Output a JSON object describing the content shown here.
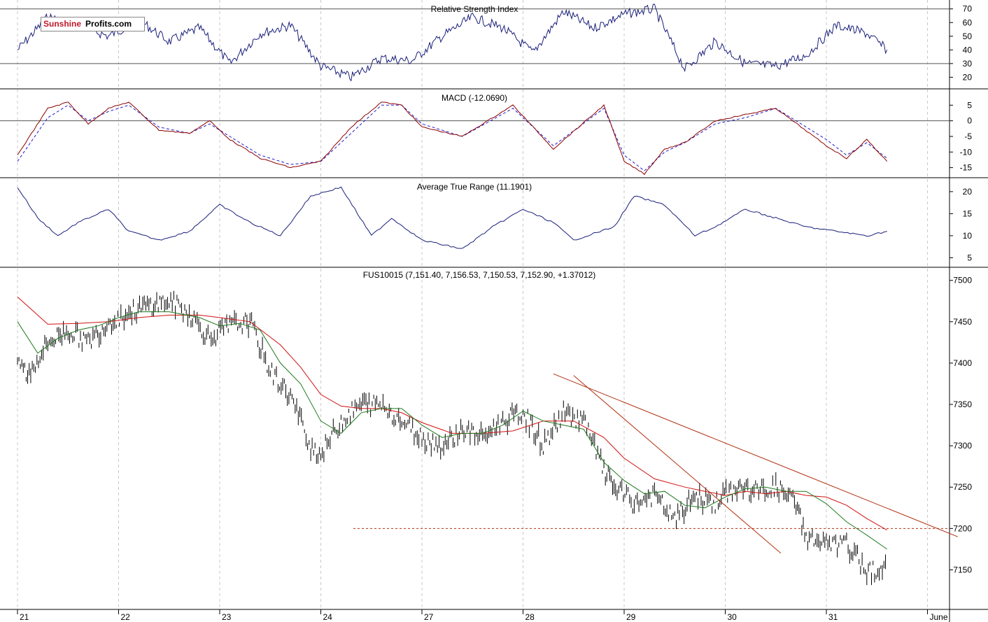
{
  "logo": {
    "part1": "Sunshine",
    "part2": "Profits.com"
  },
  "colors": {
    "price_bars": "#000000",
    "rsi": "#1a1f7a",
    "macd": "#8b0000",
    "macd_signal": "#1f1fcc",
    "atr": "#1a1f7a",
    "ma_short": "#1f7a1f",
    "ma_long": "#d01010",
    "trendline": "#b03010",
    "support": "#b03010",
    "gridline": "#c8c8c8"
  },
  "chart_data": [
    {
      "type": "line",
      "panel": "rsi",
      "title": "Relative Strength Index",
      "ylim": [
        12,
        76
      ],
      "yticks": [
        20,
        30,
        40,
        50,
        60,
        70
      ],
      "reference_lines": [
        30,
        70
      ],
      "x": [
        0,
        0.3,
        0.6,
        0.9,
        1.2,
        1.5,
        1.8,
        2.1,
        2.4,
        2.7,
        3,
        3.3,
        3.6,
        3.9,
        4.2,
        4.5,
        4.8,
        5.1,
        5.4,
        5.7,
        6,
        6.3,
        6.6,
        6.9,
        7.2,
        7.5,
        7.8,
        8.1,
        8.4,
        8.6
      ],
      "values": [
        40,
        64,
        58,
        50,
        62,
        46,
        56,
        30,
        52,
        58,
        28,
        20,
        34,
        32,
        50,
        64,
        56,
        38,
        68,
        56,
        66,
        70,
        26,
        46,
        30,
        28,
        36,
        58,
        52,
        40
      ]
    },
    {
      "type": "line",
      "panel": "macd",
      "title": "MACD (-12.0690)",
      "ylim": [
        -18,
        10
      ],
      "yticks": [
        -15,
        -10,
        -5,
        0,
        5
      ],
      "reference_lines": [
        0
      ],
      "series": [
        {
          "name": "macd",
          "x": [
            0,
            0.3,
            0.5,
            0.7,
            0.9,
            1.1,
            1.4,
            1.7,
            1.9,
            2.1,
            2.4,
            2.7,
            3,
            3.3,
            3.6,
            3.8,
            4,
            4.4,
            4.9,
            5.3,
            5.8,
            6,
            6.2,
            6.4,
            6.6,
            6.9,
            7.2,
            7.5,
            8,
            8.2,
            8.4,
            8.6
          ],
          "values": [
            -11,
            4,
            6,
            -1,
            4,
            6,
            -3,
            -4,
            0,
            -6,
            -12,
            -15,
            -13,
            -2,
            6,
            5,
            -2,
            -5,
            5,
            -9,
            5,
            -13,
            -17,
            -9,
            -7,
            0,
            2,
            4,
            -8,
            -12,
            -6,
            -13
          ]
        },
        {
          "name": "signal",
          "x": [
            0,
            0.3,
            0.5,
            0.7,
            0.9,
            1.1,
            1.4,
            1.7,
            1.9,
            2.1,
            2.4,
            2.7,
            3,
            3.3,
            3.6,
            3.8,
            4,
            4.4,
            4.9,
            5.3,
            5.8,
            6,
            6.2,
            6.4,
            6.6,
            6.9,
            7.2,
            7.5,
            8,
            8.2,
            8.4,
            8.6
          ],
          "values": [
            -13,
            1,
            5,
            0,
            3,
            5,
            -2,
            -4,
            -1,
            -5,
            -11,
            -14,
            -13,
            -4,
            5,
            5,
            -1,
            -5,
            4,
            -8,
            4,
            -11,
            -16,
            -10,
            -7,
            -1,
            1,
            4,
            -6,
            -11,
            -7,
            -12
          ]
        }
      ]
    },
    {
      "type": "line",
      "panel": "atr",
      "title": "Average True Range (11.1901)",
      "ylim": [
        3,
        23
      ],
      "yticks": [
        5,
        10,
        15,
        20
      ],
      "x": [
        0,
        0.2,
        0.4,
        0.6,
        0.9,
        1.1,
        1.4,
        1.7,
        2,
        2.3,
        2.6,
        2.9,
        3.2,
        3.5,
        3.7,
        4,
        4.4,
        4.7,
        5,
        5.3,
        5.5,
        5.9,
        6.1,
        6.4,
        6.7,
        6.9,
        7.2,
        7.5,
        7.8,
        8.1,
        8.4,
        8.6
      ],
      "values": [
        21,
        14,
        10,
        13,
        16,
        11,
        9,
        11,
        17,
        13,
        10,
        19,
        21,
        10,
        14,
        9,
        7,
        12,
        16,
        13,
        9,
        12,
        19,
        17,
        10,
        12,
        16,
        14,
        12,
        11,
        10,
        11
      ]
    },
    {
      "type": "line",
      "panel": "price",
      "title": "FUS10015 (7,151.40, 7,156.53, 7,150.53, 7,152.90, +1.37012)",
      "ylim": [
        7103,
        7515
      ],
      "yticks": [
        7150,
        7200,
        7250,
        7300,
        7350,
        7400,
        7450,
        7500
      ],
      "categories": [
        "21",
        "22",
        "23",
        "24",
        "27",
        "28",
        "29",
        "30",
        "31",
        "June"
      ],
      "support_level": 7200,
      "series": [
        {
          "name": "close",
          "x": [
            0,
            0.1,
            0.3,
            0.5,
            0.7,
            0.9,
            1.1,
            1.3,
            1.5,
            1.7,
            1.9,
            2.1,
            2.3,
            2.5,
            2.7,
            2.9,
            3,
            3.2,
            3.4,
            3.6,
            3.8,
            4,
            4.2,
            4.4,
            4.6,
            4.8,
            5,
            5.2,
            5.4,
            5.6,
            5.8,
            5.9,
            6.1,
            6.3,
            6.5,
            6.7,
            6.9,
            7.1,
            7.3,
            7.5,
            7.7,
            7.8,
            8,
            8.2,
            8.4,
            8.6
          ],
          "values": [
            7405,
            7385,
            7425,
            7440,
            7425,
            7450,
            7460,
            7470,
            7475,
            7460,
            7430,
            7445,
            7450,
            7390,
            7360,
            7300,
            7290,
            7330,
            7350,
            7350,
            7330,
            7310,
            7300,
            7320,
            7310,
            7330,
            7340,
            7300,
            7340,
            7330,
            7270,
            7250,
            7230,
            7240,
            7210,
            7240,
            7230,
            7250,
            7245,
            7250,
            7230,
            7190,
            7180,
            7180,
            7150,
            7150
          ]
        },
        {
          "name": "ma_short",
          "x": [
            0,
            0.2,
            0.4,
            0.6,
            0.8,
            1,
            1.2,
            1.5,
            1.8,
            2,
            2.2,
            2.4,
            2.6,
            2.8,
            3,
            3.2,
            3.4,
            3.6,
            3.8,
            4,
            4.2,
            4.4,
            4.6,
            4.8,
            5,
            5.2,
            5.4,
            5.6,
            5.8,
            6,
            6.2,
            6.4,
            6.6,
            6.8,
            7,
            7.2,
            7.4,
            7.6,
            7.8,
            8,
            8.2,
            8.4,
            8.6
          ],
          "values": [
            7450,
            7412,
            7430,
            7440,
            7445,
            7455,
            7462,
            7462,
            7455,
            7445,
            7448,
            7440,
            7400,
            7375,
            7330,
            7315,
            7340,
            7345,
            7345,
            7325,
            7310,
            7315,
            7315,
            7325,
            7342,
            7330,
            7325,
            7320,
            7280,
            7258,
            7242,
            7245,
            7228,
            7225,
            7238,
            7248,
            7250,
            7245,
            7245,
            7230,
            7208,
            7192,
            7175
          ]
        },
        {
          "name": "ma_long",
          "x": [
            0,
            0.3,
            0.6,
            0.9,
            1.2,
            1.5,
            1.8,
            2,
            2.3,
            2.6,
            2.8,
            3,
            3.2,
            3.4,
            3.6,
            3.8,
            4,
            4.3,
            4.6,
            4.9,
            5.2,
            5.5,
            5.8,
            6,
            6.3,
            6.6,
            6.8,
            7,
            7.2,
            7.4,
            7.6,
            7.8,
            8,
            8.2,
            8.4,
            8.6
          ],
          "values": [
            7480,
            7447,
            7448,
            7450,
            7455,
            7458,
            7458,
            7455,
            7450,
            7422,
            7395,
            7362,
            7348,
            7345,
            7345,
            7340,
            7328,
            7315,
            7315,
            7318,
            7330,
            7330,
            7310,
            7285,
            7260,
            7250,
            7245,
            7240,
            7245,
            7242,
            7245,
            7240,
            7238,
            7228,
            7212,
            7198
          ]
        },
        {
          "name": "trendline_upper",
          "x": [
            5.3,
            9.3
          ],
          "values": [
            7387,
            7190
          ]
        },
        {
          "name": "trendline_lower",
          "x": [
            5.5,
            7.55
          ],
          "values": [
            7385,
            7170
          ]
        }
      ]
    }
  ]
}
